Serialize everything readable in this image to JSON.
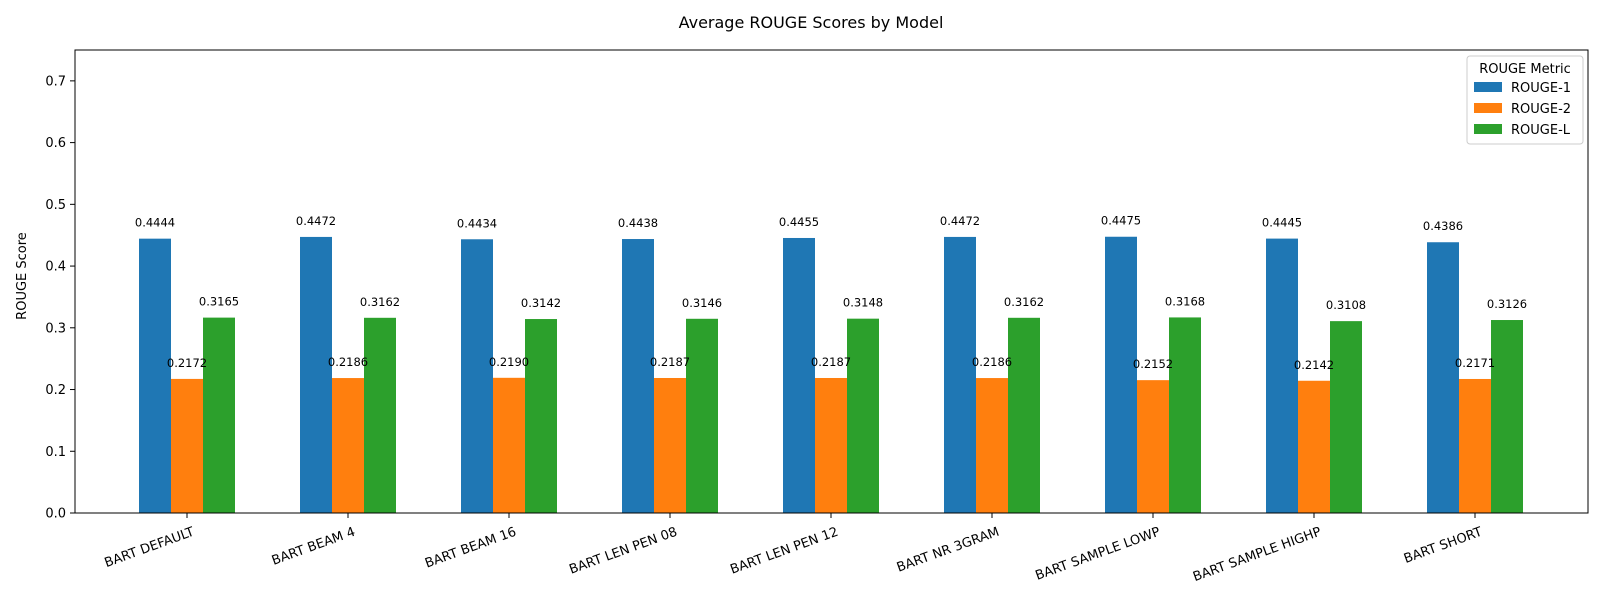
{
  "chart_data": {
    "type": "bar",
    "title": "Average ROUGE Scores by Model",
    "xlabel": "",
    "ylabel": "ROUGE Score",
    "ylim": [
      0,
      0.75
    ],
    "yticks": [
      "0.0",
      "0.1",
      "0.2",
      "0.3",
      "0.4",
      "0.5",
      "0.6",
      "0.7"
    ],
    "grid": false,
    "legend": {
      "title": "ROUGE Metric",
      "placement": "top-right"
    },
    "categories": [
      "BART DEFAULT",
      "BART BEAM 4",
      "BART BEAM 16",
      "BART LEN PEN 08",
      "BART LEN PEN 12",
      "BART NR 3GRAM",
      "BART SAMPLE LOWP",
      "BART SAMPLE HIGHP",
      "BART SHORT"
    ],
    "series": [
      {
        "name": "ROUGE-1",
        "color": "#1f77b4",
        "values": [
          0.4444,
          0.4472,
          0.4434,
          0.4438,
          0.4455,
          0.4472,
          0.4475,
          0.4445,
          0.4386
        ],
        "labels": [
          "0.4444",
          "0.4472",
          "0.4434",
          "0.4438",
          "0.4455",
          "0.4472",
          "0.4475",
          "0.4445",
          "0.4386"
        ]
      },
      {
        "name": "ROUGE-2",
        "color": "#ff7f0e",
        "values": [
          0.2172,
          0.2186,
          0.219,
          0.2187,
          0.2187,
          0.2186,
          0.2152,
          0.2142,
          0.2171
        ],
        "labels": [
          "0.2172",
          "0.2186",
          "0.2190",
          "0.2187",
          "0.2187",
          "0.2186",
          "0.2152",
          "0.2142",
          "0.2171"
        ]
      },
      {
        "name": "ROUGE-L",
        "color": "#2ca02c",
        "values": [
          0.3165,
          0.3162,
          0.3142,
          0.3146,
          0.3148,
          0.3162,
          0.3168,
          0.3108,
          0.3126
        ],
        "labels": [
          "0.3165",
          "0.3162",
          "0.3142",
          "0.3146",
          "0.3148",
          "0.3162",
          "0.3168",
          "0.3108",
          "0.3126"
        ]
      }
    ]
  }
}
